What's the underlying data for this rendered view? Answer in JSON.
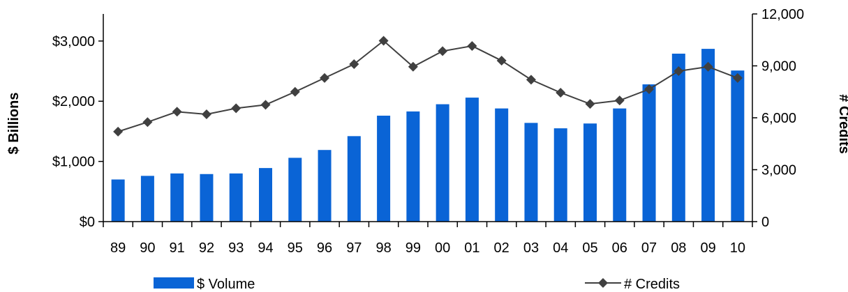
{
  "chart_data": {
    "type": "bar+line",
    "categories": [
      "89",
      "90",
      "91",
      "92",
      "93",
      "94",
      "95",
      "96",
      "97",
      "98",
      "99",
      "00",
      "01",
      "02",
      "03",
      "04",
      "05",
      "06",
      "07",
      "08",
      "09",
      "10"
    ],
    "series": [
      {
        "name": "$ Volume",
        "type": "bar",
        "axis": "left",
        "color": "#0a64d6",
        "values": [
          700,
          760,
          800,
          790,
          800,
          890,
          1060,
          1190,
          1420,
          1760,
          1830,
          1950,
          2060,
          1880,
          1640,
          1550,
          1630,
          1880,
          2280,
          2790,
          2870,
          2510
        ]
      },
      {
        "name": "# Credits",
        "type": "line",
        "axis": "right",
        "color": "#404040",
        "marker": "diamond",
        "values": [
          5200,
          5750,
          6350,
          6200,
          6550,
          6750,
          7500,
          8300,
          9100,
          10450,
          8950,
          9850,
          10150,
          9300,
          8200,
          7450,
          6800,
          7000,
          7650,
          8700,
          8950,
          8300
        ]
      }
    ],
    "ylabel_left": "$ Billions",
    "ylabel_right": "# Credits",
    "ylim_left": [
      0,
      3450
    ],
    "ylim_right": [
      0,
      12000
    ],
    "yticks_left": [
      0,
      1000,
      2000,
      3000
    ],
    "yticks_left_labels": [
      "$0",
      "$1,000",
      "$2,000",
      "$3,000"
    ],
    "yticks_right": [
      0,
      3000,
      6000,
      9000,
      12000
    ],
    "yticks_right_labels": [
      "0",
      "3,000",
      "6,000",
      "9,000",
      "12,000"
    ],
    "legend_position": "bottom",
    "grid": false
  }
}
